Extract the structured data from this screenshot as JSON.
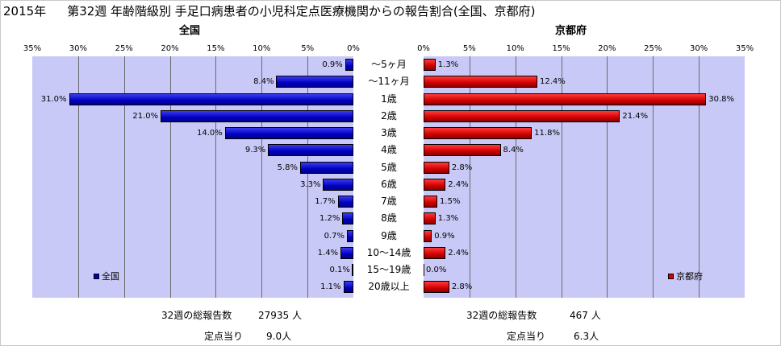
{
  "title": {
    "year": "2015年",
    "main": "第32週 年齢階級別 手足口病患者の小児科定点医療機関からの報告割合(全国、京都府)"
  },
  "colors": {
    "national": "#0000c8",
    "kyoto": "#dd0000",
    "plot_bg": "#c9c9f7"
  },
  "chart_data": [
    {
      "type": "bar",
      "orientation": "horizontal",
      "title": "全国",
      "legend": "全国",
      "legend_position": "bottom-left",
      "xlim": [
        0,
        35
      ],
      "x_reversed": true,
      "ticks": [
        "0%",
        "5%",
        "10%",
        "15%",
        "20%",
        "25%",
        "30%",
        "35%"
      ],
      "categories": [
        "～5ヶ月",
        "～11ヶ月",
        "1歳",
        "2歳",
        "3歳",
        "4歳",
        "5歳",
        "6歳",
        "7歳",
        "8歳",
        "9歳",
        "10～14歳",
        "15～19歳",
        "20歳以上"
      ],
      "values": [
        0.9,
        8.4,
        31.0,
        21.0,
        14.0,
        9.3,
        5.8,
        3.3,
        1.7,
        1.2,
        0.7,
        1.4,
        0.1,
        1.1
      ],
      "labels": [
        "0.9%",
        "8.4%",
        "31.0%",
        "21.0%",
        "14.0%",
        "9.3%",
        "5.8%",
        "3.3%",
        "1.7%",
        "1.2%",
        "0.7%",
        "1.4%",
        "0.1%",
        "1.1%"
      ],
      "grid": true
    },
    {
      "type": "bar",
      "orientation": "horizontal",
      "title": "京都府",
      "legend": "京都府",
      "legend_position": "bottom-right",
      "xlim": [
        0,
        35
      ],
      "x_reversed": false,
      "ticks": [
        "0%",
        "5%",
        "10%",
        "15%",
        "20%",
        "25%",
        "30%",
        "35%"
      ],
      "categories": [
        "～5ヶ月",
        "～11ヶ月",
        "1歳",
        "2歳",
        "3歳",
        "4歳",
        "5歳",
        "6歳",
        "7歳",
        "8歳",
        "9歳",
        "10～14歳",
        "15～19歳",
        "20歳以上"
      ],
      "values": [
        1.3,
        12.4,
        30.8,
        21.4,
        11.8,
        8.4,
        2.8,
        2.4,
        1.5,
        1.3,
        0.9,
        2.4,
        0.0,
        2.8
      ],
      "labels": [
        "1.3%",
        "12.4%",
        "30.8%",
        "21.4%",
        "11.8%",
        "8.4%",
        "2.8%",
        "2.4%",
        "1.5%",
        "1.3%",
        "0.9%",
        "2.4%",
        "0.0%",
        "2.8%"
      ],
      "grid": true
    }
  ],
  "footer": {
    "national": {
      "total_label": "32週の総報告数",
      "total_value": "27935 人",
      "per_label": "定点当り",
      "per_value": "9.0人"
    },
    "kyoto": {
      "total_label": "32週の総報告数",
      "total_value": "467 人",
      "per_label": "定点当り",
      "per_value": "6.3人"
    }
  }
}
